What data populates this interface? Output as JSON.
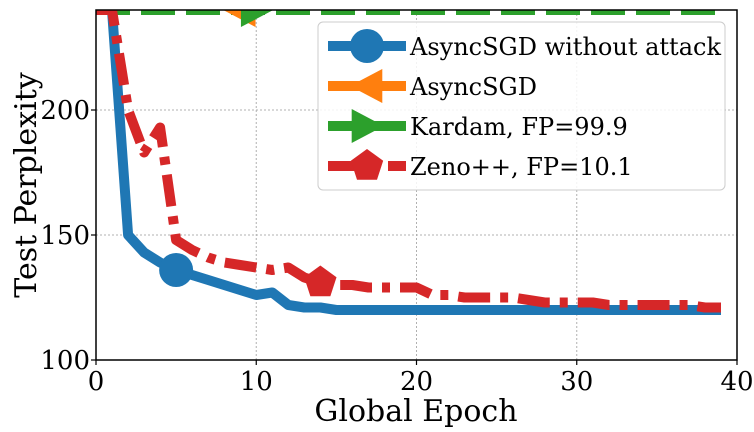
{
  "chart_data": {
    "type": "line",
    "title": "",
    "xlabel": "Global Epoch",
    "ylabel": "Test Perplexity",
    "xlim": [
      0,
      40
    ],
    "ylim": [
      100,
      240
    ],
    "xticks": [
      0,
      10,
      20,
      30,
      40
    ],
    "yticks": [
      100,
      150,
      200
    ],
    "grid": true,
    "legend_position": "top-right",
    "series": [
      {
        "name": "AsyncSGD without attack",
        "color": "#1f77b4",
        "linestyle": "solid",
        "marker": "circle",
        "marker_at": [
          5
        ],
        "x": [
          0,
          1,
          2,
          3,
          4,
          5,
          6,
          7,
          8,
          9,
          10,
          11,
          12,
          13,
          14,
          15,
          16,
          17,
          18,
          19,
          20,
          21,
          22,
          23,
          24,
          25,
          26,
          27,
          28,
          29,
          30,
          31,
          32,
          33,
          34,
          35,
          36,
          37,
          38,
          39
        ],
        "y": [
          240,
          240,
          150,
          143,
          139,
          136,
          134,
          132,
          130,
          128,
          126,
          127,
          122,
          121,
          121,
          120,
          120,
          120,
          120,
          120,
          120,
          120,
          120,
          120,
          120,
          120,
          120,
          120,
          120,
          120,
          120,
          120,
          120,
          120,
          120,
          120,
          120,
          120,
          120,
          120
        ]
      },
      {
        "name": "AsyncSGD",
        "color": "#ff7f0e",
        "linestyle": "dashed",
        "marker": "triangle-left",
        "marker_at": [
          9
        ],
        "x": [
          0,
          5,
          10,
          15,
          20,
          25,
          30,
          35,
          39
        ],
        "y": [
          240,
          240,
          240,
          240,
          240,
          240,
          240,
          240,
          240
        ]
      },
      {
        "name": "Kardam, FP=99.9",
        "color": "#2ca02c",
        "linestyle": "dashed",
        "marker": "triangle-right",
        "marker_at": [
          10
        ],
        "x": [
          0,
          5,
          10,
          15,
          20,
          25,
          30,
          35,
          39
        ],
        "y": [
          240,
          240,
          240,
          240,
          240,
          240,
          240,
          240,
          240
        ]
      },
      {
        "name": "Zeno++, FP=10.1",
        "color": "#d62728",
        "linestyle": "dashdot",
        "marker": "pentagon",
        "marker_at": [
          14
        ],
        "x": [
          0,
          1,
          2,
          3,
          4,
          5,
          6,
          7,
          8,
          9,
          10,
          11,
          12,
          13,
          14,
          15,
          16,
          17,
          18,
          19,
          20,
          21,
          22,
          23,
          24,
          25,
          26,
          27,
          28,
          29,
          30,
          31,
          32,
          33,
          34,
          35,
          36,
          37,
          38,
          39
        ],
        "y": [
          240,
          240,
          200,
          183,
          193,
          148,
          144,
          141,
          139,
          138,
          137,
          136,
          137,
          133,
          131,
          130,
          130,
          129,
          129,
          129,
          129,
          126,
          126,
          125,
          125,
          125,
          125,
          124,
          123,
          123,
          123,
          123,
          122,
          122,
          122,
          122,
          122,
          122,
          121,
          121
        ]
      }
    ]
  }
}
